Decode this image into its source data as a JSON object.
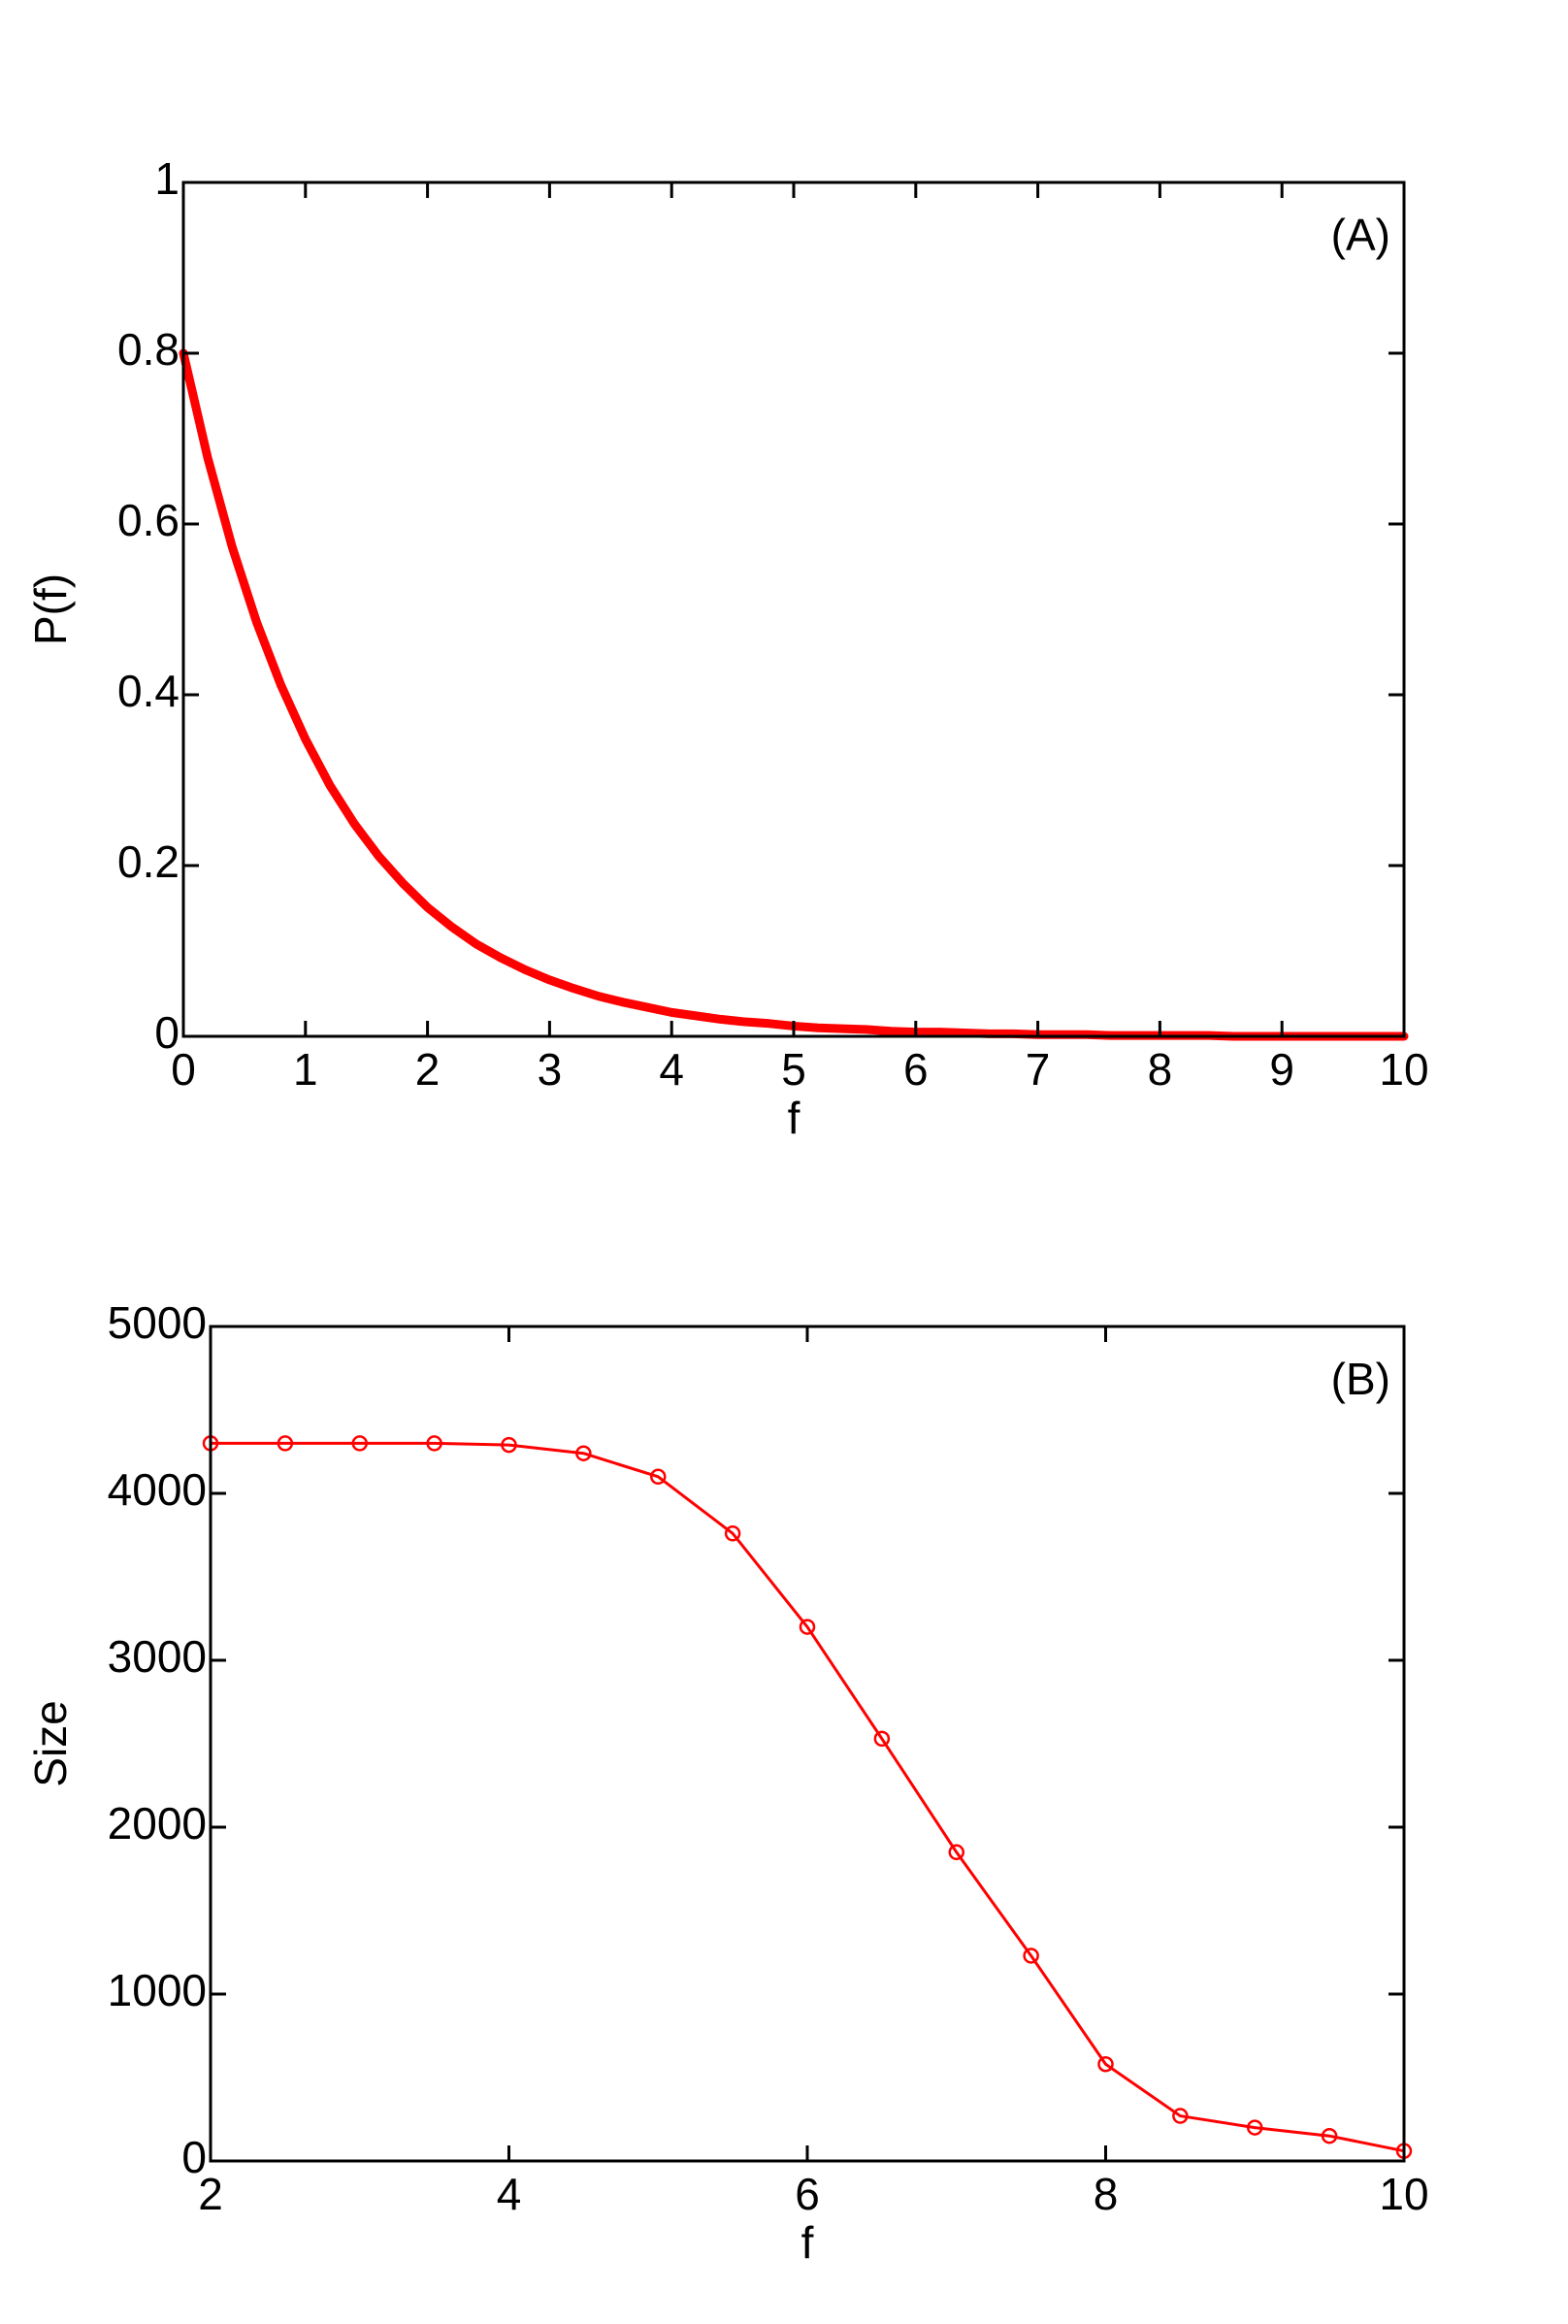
{
  "chart_data": [
    {
      "type": "line",
      "panel_label": "(A)",
      "x_label": "f",
      "y_label": "P(f)",
      "color": "#ff0000",
      "markers": false,
      "x": [
        0,
        0.2,
        0.4,
        0.6,
        0.8,
        1,
        1.2,
        1.4,
        1.6,
        1.8,
        2,
        2.2,
        2.4,
        2.6,
        2.8,
        3,
        3.2,
        3.4,
        3.6,
        3.8,
        4,
        4.2,
        4.4,
        4.6,
        4.8,
        5,
        5.2,
        5.4,
        5.6,
        5.8,
        6,
        6.2,
        6.4,
        6.6,
        6.8,
        7,
        7.2,
        7.4,
        7.6,
        7.8,
        8,
        8.2,
        8.4,
        8.6,
        8.8,
        9,
        9.2,
        9.4,
        9.6,
        9.8,
        10
      ],
      "values": [
        0.8,
        0.677,
        0.573,
        0.485,
        0.411,
        0.348,
        0.294,
        0.249,
        0.211,
        0.179,
        0.151,
        0.128,
        0.108,
        0.092,
        0.078,
        0.066,
        0.056,
        0.047,
        0.04,
        0.034,
        0.028,
        0.024,
        0.02,
        0.017,
        0.015,
        0.012,
        0.01,
        0.009,
        0.008,
        0.006,
        0.005,
        0.005,
        0.004,
        0.003,
        0.003,
        0.002,
        0.002,
        0.002,
        0.001,
        0.001,
        0.001,
        0.001,
        0.001,
        0,
        0,
        0,
        0,
        0,
        0,
        0,
        0
      ],
      "xlim": [
        0,
        10
      ],
      "xticks": [
        0,
        1,
        2,
        3,
        4,
        5,
        6,
        7,
        8,
        9,
        10
      ],
      "ylim": [
        0,
        1
      ],
      "yticks": [
        0,
        0.2,
        0.4,
        0.6,
        0.8,
        1
      ]
    },
    {
      "type": "line",
      "panel_label": "(B)",
      "x_label": "f",
      "y_label": "Size",
      "color": "#ff0000",
      "markers": true,
      "x": [
        2,
        2.5,
        3,
        3.5,
        4,
        4.5,
        5,
        5.5,
        6,
        6.5,
        7,
        7.5,
        8,
        8.5,
        9,
        9.5,
        10
      ],
      "values": [
        4300,
        4300,
        4300,
        4300,
        4290,
        4240,
        4100,
        3760,
        3200,
        2530,
        1850,
        1230,
        580,
        270,
        200,
        150,
        60
      ],
      "xlim": [
        2,
        10
      ],
      "xticks": [
        2,
        4,
        6,
        8,
        10
      ],
      "ylim": [
        0,
        5000
      ],
      "yticks": [
        0,
        1000,
        2000,
        3000,
        4000,
        5000
      ]
    }
  ]
}
